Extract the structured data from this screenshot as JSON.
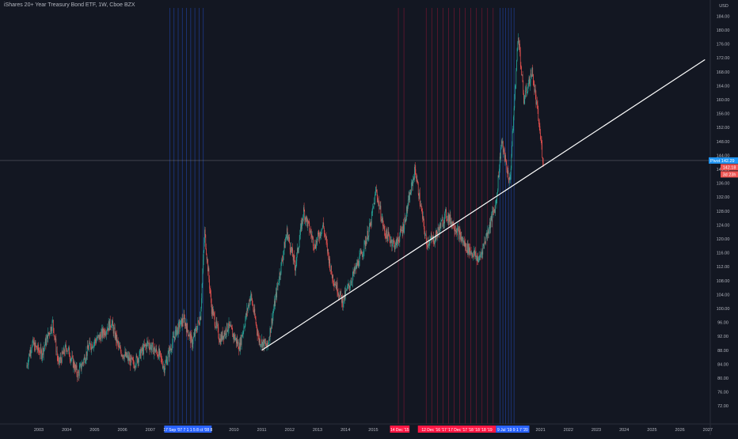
{
  "chart_data": {
    "type": "candlestick",
    "title": "iShares 20+ Year Treasury Bond ETF, 1W, Cboe BZX",
    "currency": "USD",
    "ylim": [
      72,
      188
    ],
    "xlim": [
      2002.5,
      2027.3
    ],
    "y_ticks": [
      "184.00",
      "180.00",
      "176.00",
      "172.00",
      "168.00",
      "164.00",
      "160.00",
      "156.00",
      "152.00",
      "148.00",
      "144.00",
      "140.00",
      "136.00",
      "132.00",
      "128.00",
      "124.00",
      "120.00",
      "116.00",
      "112.00",
      "108.00",
      "104.00",
      "100.00",
      "96.00",
      "92.00",
      "88.00",
      "84.00",
      "80.00",
      "76.00",
      "72.00"
    ],
    "x_ticks": [
      "2003",
      "2004",
      "2005",
      "2006",
      "2007",
      "2010",
      "2011",
      "2012",
      "2013",
      "2014",
      "2015",
      "2017",
      "2018",
      "2019",
      "2021",
      "2022",
      "2023",
      "2024",
      "2025",
      "2026",
      "2027"
    ],
    "price_path": [
      {
        "x": 2002.55,
        "y": 83
      },
      {
        "x": 2002.75,
        "y": 90
      },
      {
        "x": 2003.1,
        "y": 87
      },
      {
        "x": 2003.5,
        "y": 96
      },
      {
        "x": 2003.7,
        "y": 84
      },
      {
        "x": 2004.0,
        "y": 89
      },
      {
        "x": 2004.4,
        "y": 81
      },
      {
        "x": 2004.8,
        "y": 89
      },
      {
        "x": 2005.2,
        "y": 92
      },
      {
        "x": 2005.6,
        "y": 96
      },
      {
        "x": 2005.9,
        "y": 88
      },
      {
        "x": 2006.4,
        "y": 84
      },
      {
        "x": 2006.9,
        "y": 90
      },
      {
        "x": 2007.3,
        "y": 87
      },
      {
        "x": 2007.5,
        "y": 83
      },
      {
        "x": 2007.9,
        "y": 93
      },
      {
        "x": 2008.2,
        "y": 97
      },
      {
        "x": 2008.5,
        "y": 90
      },
      {
        "x": 2008.8,
        "y": 98
      },
      {
        "x": 2008.95,
        "y": 122
      },
      {
        "x": 2009.2,
        "y": 100
      },
      {
        "x": 2009.5,
        "y": 91
      },
      {
        "x": 2009.8,
        "y": 95
      },
      {
        "x": 2010.2,
        "y": 89
      },
      {
        "x": 2010.6,
        "y": 104
      },
      {
        "x": 2010.9,
        "y": 91
      },
      {
        "x": 2011.2,
        "y": 89
      },
      {
        "x": 2011.6,
        "y": 108
      },
      {
        "x": 2011.9,
        "y": 122
      },
      {
        "x": 2012.2,
        "y": 112
      },
      {
        "x": 2012.5,
        "y": 128
      },
      {
        "x": 2012.9,
        "y": 118
      },
      {
        "x": 2013.2,
        "y": 124
      },
      {
        "x": 2013.5,
        "y": 110
      },
      {
        "x": 2013.9,
        "y": 102
      },
      {
        "x": 2014.2,
        "y": 108
      },
      {
        "x": 2014.6,
        "y": 116
      },
      {
        "x": 2014.9,
        "y": 124
      },
      {
        "x": 2015.1,
        "y": 134
      },
      {
        "x": 2015.4,
        "y": 122
      },
      {
        "x": 2015.8,
        "y": 118
      },
      {
        "x": 2016.1,
        "y": 124
      },
      {
        "x": 2016.5,
        "y": 140
      },
      {
        "x": 2016.9,
        "y": 119
      },
      {
        "x": 2017.2,
        "y": 120
      },
      {
        "x": 2017.6,
        "y": 127
      },
      {
        "x": 2017.9,
        "y": 124
      },
      {
        "x": 2018.3,
        "y": 118
      },
      {
        "x": 2018.8,
        "y": 114
      },
      {
        "x": 2019.1,
        "y": 122
      },
      {
        "x": 2019.4,
        "y": 130
      },
      {
        "x": 2019.6,
        "y": 148
      },
      {
        "x": 2019.9,
        "y": 136
      },
      {
        "x": 2020.2,
        "y": 179
      },
      {
        "x": 2020.4,
        "y": 160
      },
      {
        "x": 2020.7,
        "y": 168
      },
      {
        "x": 2020.9,
        "y": 156
      },
      {
        "x": 2021.1,
        "y": 142
      }
    ],
    "trendline": {
      "x1": 2011.0,
      "y1": 88,
      "x2": 2026.9,
      "y2": 171.5
    },
    "current_price": {
      "value": 142.18,
      "label": "142.18"
    },
    "last_label": "Pivot",
    "last_value": "142.29",
    "countdown": "3d 23h",
    "vertical_markers_blue": [
      2007.7,
      2007.85,
      2008.0,
      2008.15,
      2008.3,
      2008.45,
      2008.6,
      2008.75,
      2008.9,
      2019.55,
      2019.65,
      2019.75,
      2019.85,
      2019.95,
      2020.05
    ],
    "vertical_markers_red": [
      2015.9,
      2016.1,
      2016.9,
      2017.1,
      2017.3,
      2017.5,
      2017.7,
      2017.9,
      2018.1,
      2018.3,
      2018.5,
      2018.7,
      2018.9,
      2019.1,
      2019.3
    ],
    "date_labels": [
      {
        "text": "17 Sep '07 7 1 1 5 8 ct '08 8",
        "color": "#2962ff",
        "x_from": 2007.5,
        "x_to": 2009.2
      },
      {
        "text": "14 Dec '15",
        "color": "#ff1744",
        "x_from": 2015.6,
        "x_to": 2016.3
      },
      {
        "text": "12 Dec '16 '17 '17 Dec '17 '18 '18 '18 '19",
        "color": "#ff1744",
        "x_from": 2016.6,
        "x_to": 2019.4
      },
      {
        "text": "9 Jul '19 9 1 7 '20",
        "color": "#2962ff",
        "x_from": 2019.4,
        "x_to": 2020.6
      }
    ]
  }
}
